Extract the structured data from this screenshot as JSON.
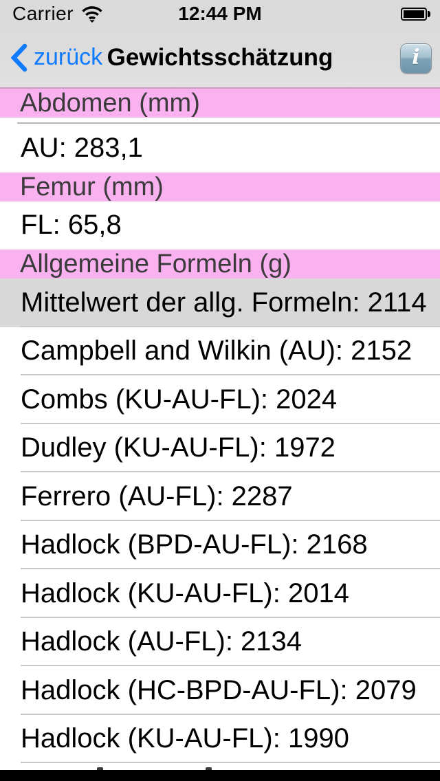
{
  "status_bar": {
    "carrier": "Carrier",
    "time": "12:44 PM",
    "wifi_icon": "wifi-full",
    "battery_icon": "battery-full"
  },
  "nav_bar": {
    "back_label": "zurück",
    "title": "Gewichtsschätzung",
    "info_glyph": "i"
  },
  "table": {
    "sections": [
      {
        "header": "Abdomen (mm)",
        "rows": [
          {
            "text": "AU: 283,1",
            "highlighted": false
          }
        ]
      },
      {
        "header": "Femur (mm)",
        "rows": [
          {
            "text": "FL: 65,8",
            "highlighted": false
          }
        ]
      },
      {
        "header": "Allgemeine Formeln (g)",
        "rows": [
          {
            "text": "Mittelwert der allg. Formeln: 2114",
            "highlighted": true
          },
          {
            "text": "Campbell and Wilkin (AU): 2152",
            "highlighted": false
          },
          {
            "text": "Combs (KU-AU-FL): 2024",
            "highlighted": false
          },
          {
            "text": "Dudley (KU-AU-FL): 1972",
            "highlighted": false
          },
          {
            "text": "Ferrero (AU-FL): 2287",
            "highlighted": false
          },
          {
            "text": "Hadlock (BPD-AU-FL): 2168",
            "highlighted": false
          },
          {
            "text": "Hadlock (KU-AU-FL): 2014",
            "highlighted": false
          },
          {
            "text": "Hadlock (AU-FL): 2134",
            "highlighted": false
          },
          {
            "text": "Hadlock (HC-BPD-AU-FL): 2079",
            "highlighted": false
          },
          {
            "text": "Hadlock (KU-AU-FL): 1990",
            "highlighted": false
          }
        ]
      }
    ],
    "partial_next_row_visible": true
  },
  "colors": {
    "accent_blue": "#0f7bff",
    "section_pink": "#fab1f0",
    "selected_gray": "#d8d8d8",
    "separator": "#c8c7cc",
    "chrome_gray": "#dadada",
    "black_bar": "#000000"
  }
}
